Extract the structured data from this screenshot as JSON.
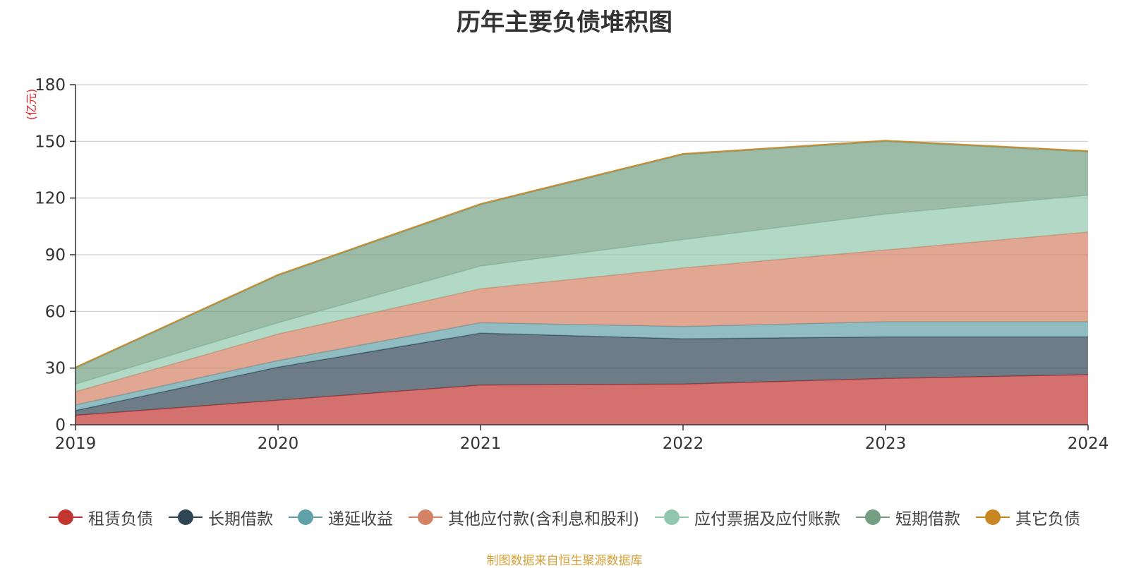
{
  "chart_data": {
    "type": "area",
    "title": "历年主要负债堆积图",
    "ylabel": "(亿元)",
    "xlabel": "",
    "x": [
      "2019",
      "2020",
      "2021",
      "2022",
      "2023",
      "2024"
    ],
    "ylim": [
      0,
      180
    ],
    "yticks": [
      0,
      30,
      60,
      90,
      120,
      150,
      180
    ],
    "stacked": true,
    "grid": true,
    "legend_position": "bottom",
    "series": [
      {
        "name": "租赁负债",
        "color": "#c23531",
        "values": [
          5,
          13,
          21,
          21.5,
          24.5,
          26.5
        ]
      },
      {
        "name": "长期借款",
        "color": "#2f4554",
        "values": [
          2.5,
          17.5,
          27.5,
          24,
          22,
          20
        ]
      },
      {
        "name": "递延收益",
        "color": "#61a0a8",
        "values": [
          3,
          3.5,
          5.5,
          6.5,
          8,
          8
        ]
      },
      {
        "name": "其他应付款(含利息和股利)",
        "color": "#d48265",
        "values": [
          7,
          14,
          18,
          31,
          38,
          47.5
        ]
      },
      {
        "name": "应付票据及应付账款",
        "color": "#91c7ae",
        "values": [
          4,
          6,
          12,
          15,
          19,
          19.5
        ]
      },
      {
        "name": "短期借款",
        "color": "#749f83",
        "values": [
          8.5,
          25,
          32.5,
          45,
          38.5,
          23
        ]
      },
      {
        "name": "其它负债",
        "color": "#ca8622",
        "values": [
          0.5,
          0.5,
          0.5,
          0.5,
          0.5,
          0.5
        ]
      }
    ],
    "source_note": "制图数据来自恒生聚源数据库"
  }
}
